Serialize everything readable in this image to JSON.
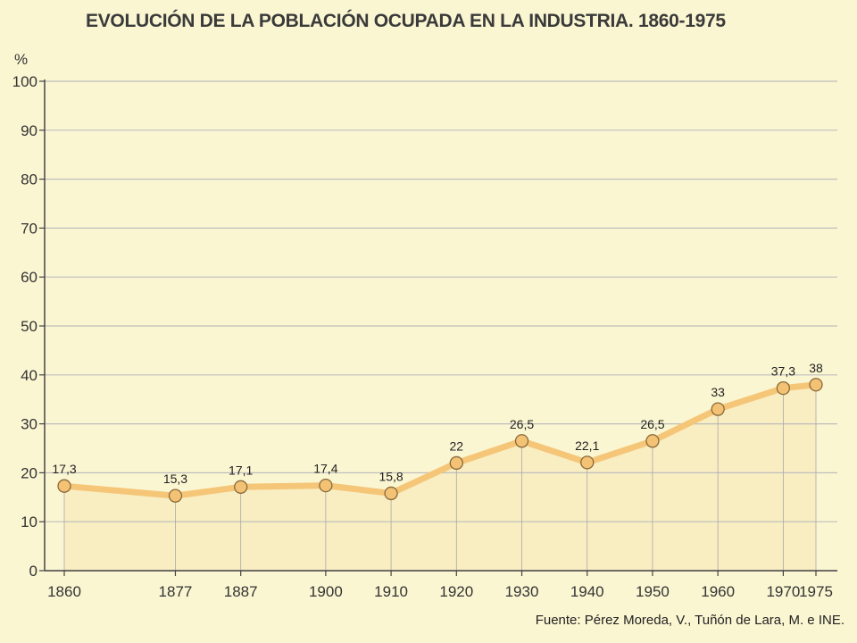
{
  "title": "EVOLUCIÓN DE LA POBLACIÓN OCUPADA EN LA INDUSTRIA. 1860-1975",
  "source": "Fuente: Pérez Moreda, V., Tuñón de Lara, M. e INE.",
  "colors": {
    "background": "#fbf6d2",
    "line": "#f5c678",
    "marker_fill": "#f3c275",
    "marker_stroke": "#8a6a3a",
    "area": "#f7e6b4",
    "grid": "#bdbdbd"
  },
  "chart_data": {
    "type": "line",
    "title": "EVOLUCIÓN DE LA POBLACIÓN OCUPADA EN LA INDUSTRIA. 1860-1975",
    "ylabel": "%",
    "xlabel": "",
    "x": [
      1860,
      1877,
      1887,
      1900,
      1910,
      1920,
      1930,
      1940,
      1950,
      1960,
      1970,
      1975
    ],
    "x_labels": [
      "1860",
      "1877",
      "1887",
      "1900",
      "1910",
      "1920",
      "1930",
      "1940",
      "1950",
      "1960",
      "1970",
      "1975"
    ],
    "values": [
      17.3,
      15.3,
      17.1,
      17.4,
      15.8,
      22,
      26.5,
      22.1,
      26.5,
      33,
      37.3,
      38
    ],
    "value_labels": [
      "17,3",
      "15,3",
      "17,1",
      "17,4",
      "15,8",
      "22",
      "26,5",
      "22,1",
      "26,5",
      "33",
      "37,3",
      "38"
    ],
    "ylim": [
      0,
      100
    ],
    "yticks": [
      0,
      10,
      20,
      30,
      40,
      50,
      60,
      70,
      80,
      90,
      100
    ],
    "grid": true,
    "legend": "none"
  }
}
